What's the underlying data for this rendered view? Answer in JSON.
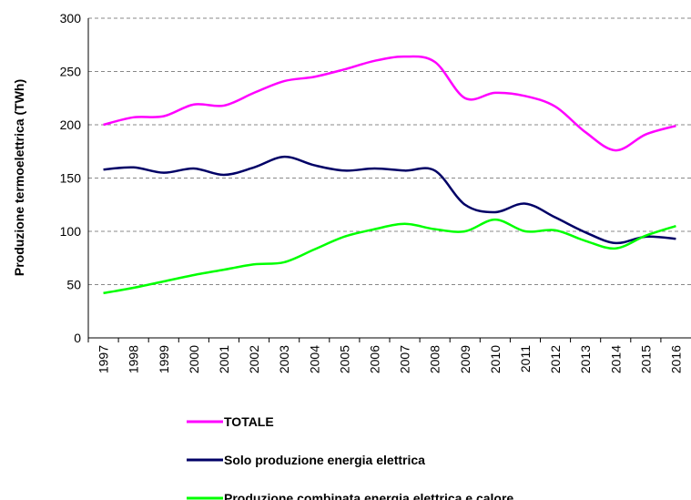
{
  "chart_data": {
    "type": "line",
    "y_label": "Produzione termoelettrica (TWh)",
    "categories": [
      "1997",
      "1998",
      "1999",
      "2000",
      "2001",
      "2002",
      "2003",
      "2004",
      "2005",
      "2006",
      "2007",
      "2008",
      "2009",
      "2010",
      "2011",
      "2012",
      "2013",
      "2014",
      "2015",
      "2016"
    ],
    "series": [
      {
        "name": "TOTALE",
        "color": "#ff00ff",
        "values": [
          200,
          207,
          208,
          219,
          218,
          230,
          241,
          245,
          252,
          260,
          264,
          259,
          225,
          230,
          227,
          217,
          193,
          176,
          191,
          199
        ]
      },
      {
        "name": "Solo produzione energia elettrica",
        "color": "#000066",
        "values": [
          158,
          160,
          155,
          159,
          153,
          160,
          170,
          162,
          157,
          159,
          157,
          157,
          125,
          118,
          126,
          113,
          99,
          89,
          95,
          93
        ]
      },
      {
        "name": "Produzione combinata energia elettrica e calore",
        "color": "#00ff00",
        "values": [
          42,
          47,
          53,
          59,
          64,
          69,
          71,
          83,
          95,
          102,
          107,
          102,
          100,
          111,
          100,
          101,
          91,
          84,
          96,
          105
        ]
      }
    ],
    "ylim": [
      0,
      300
    ],
    "yticks": [
      0,
      50,
      100,
      150,
      200,
      250,
      300
    ],
    "grid": true
  }
}
